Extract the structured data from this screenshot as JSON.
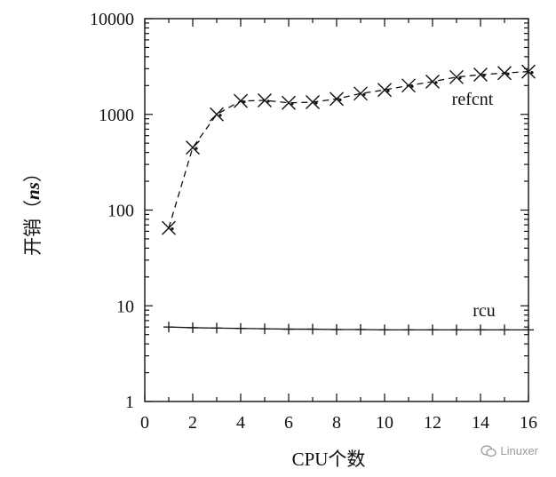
{
  "chart_data": {
    "type": "line",
    "title": "",
    "xlabel": "CPU个数",
    "ylabel": "开销（ns）",
    "ylabel_parts": {
      "prefix": "开销（",
      "unit": "ns",
      "suffix": "）"
    },
    "xlim": [
      0,
      16
    ],
    "ylim": [
      1,
      10000
    ],
    "yscale": "log",
    "xticks": [
      0,
      2,
      4,
      6,
      8,
      10,
      12,
      14,
      16
    ],
    "yticks": [
      1,
      10,
      100,
      1000,
      10000
    ],
    "ytick_labels": [
      "1",
      "10",
      "100",
      "1000",
      "10000"
    ],
    "x_minor_step": 1,
    "grid": false,
    "series": [
      {
        "name": "refcnt",
        "marker": "x",
        "line_style": "dashed",
        "x": [
          1,
          2,
          3,
          4,
          5,
          6,
          7,
          8,
          9,
          10,
          11,
          12,
          13,
          14,
          15,
          16
        ],
        "y": [
          65,
          450,
          1000,
          1380,
          1400,
          1320,
          1340,
          1450,
          1650,
          1800,
          2000,
          2200,
          2450,
          2600,
          2700,
          2800
        ]
      },
      {
        "name": "rcu",
        "marker": "+",
        "line_style": "solid",
        "x": [
          1,
          2,
          3,
          4,
          5,
          6,
          7,
          8,
          9,
          10,
          11,
          12,
          13,
          14,
          15,
          16
        ],
        "y": [
          6.0,
          5.9,
          5.85,
          5.8,
          5.75,
          5.7,
          5.7,
          5.65,
          5.65,
          5.6,
          5.6,
          5.6,
          5.6,
          5.6,
          5.6,
          5.6
        ]
      }
    ]
  },
  "watermark": {
    "text": "Linuxer"
  }
}
